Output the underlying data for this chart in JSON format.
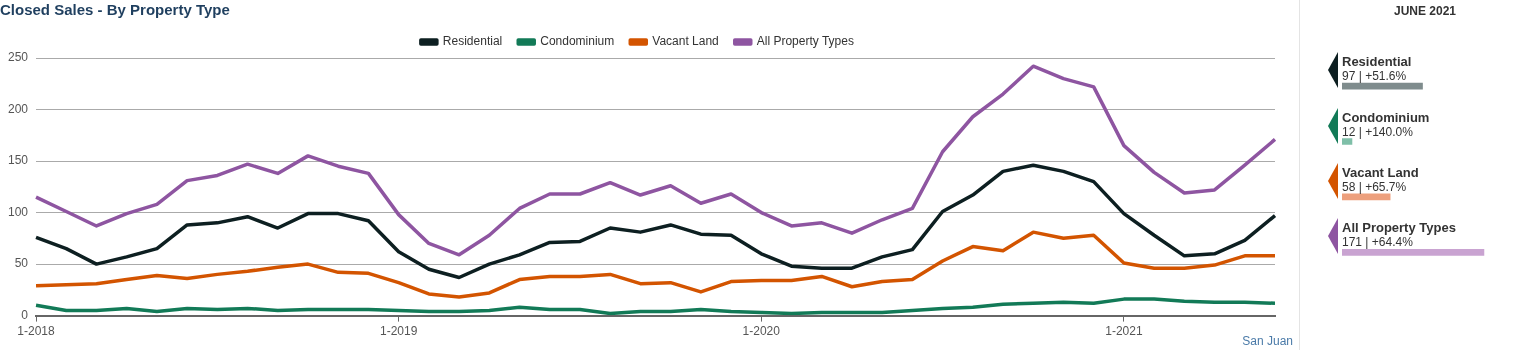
{
  "chart_data": [
    {
      "type": "line",
      "title": "Closed Sales - By Property Type",
      "categories": [
        "1-2018",
        null,
        null,
        null,
        null,
        null,
        null,
        null,
        null,
        null,
        null,
        null,
        "1-2019",
        null,
        null,
        null,
        null,
        null,
        null,
        null,
        null,
        null,
        null,
        null,
        "1-2020",
        null,
        null,
        null,
        null,
        null,
        null,
        null,
        null,
        null,
        null,
        null,
        "1-2021",
        null,
        null,
        null,
        null,
        null
      ],
      "series": [
        {
          "name": "Residential",
          "color": "#0d1f21",
          "values": [
            76,
            65,
            50,
            57,
            65,
            88,
            90,
            96,
            85,
            99,
            99,
            92,
            62,
            45,
            37,
            50,
            59,
            71,
            72,
            85,
            81,
            88,
            79,
            78,
            60,
            48,
            46,
            46,
            57,
            64,
            101,
            117,
            140,
            146,
            140,
            130,
            99,
            78,
            58,
            60,
            73,
            97
          ]
        },
        {
          "name": "Condominium",
          "color": "#127a57",
          "values": [
            10,
            5,
            5,
            7,
            4,
            7,
            6,
            7,
            5,
            6,
            6,
            6,
            5,
            4,
            4,
            5,
            8,
            6,
            6,
            2,
            4,
            4,
            6,
            4,
            3,
            2,
            3,
            3,
            3,
            5,
            7,
            8,
            11,
            12,
            13,
            12,
            16,
            16,
            14,
            13,
            13,
            12
          ]
        },
        {
          "name": "Vacant Land",
          "color": "#d35400",
          "values": [
            29,
            30,
            31,
            35,
            39,
            36,
            40,
            43,
            47,
            50,
            42,
            41,
            32,
            21,
            18,
            22,
            35,
            38,
            38,
            40,
            31,
            32,
            23,
            33,
            34,
            34,
            38,
            28,
            33,
            35,
            53,
            67,
            63,
            81,
            75,
            78,
            51,
            46,
            46,
            49,
            58,
            58
          ]
        },
        {
          "name": "All Property Types",
          "color": "#8e55a1",
          "values": [
            115,
            101,
            87,
            99,
            108,
            131,
            136,
            147,
            138,
            155,
            145,
            138,
            98,
            70,
            59,
            78,
            104,
            118,
            118,
            129,
            117,
            126,
            109,
            118,
            100,
            87,
            90,
            80,
            93,
            104,
            159,
            193,
            215,
            242,
            230,
            222,
            165,
            139,
            119,
            122,
            146,
            171
          ]
        }
      ],
      "ylim": [
        0,
        250
      ],
      "yticks": [
        0,
        50,
        100,
        150,
        200,
        250
      ],
      "grid": "y",
      "legend": "top",
      "marker": "none",
      "line_style": "solid",
      "annotations": [
        "San Juan"
      ]
    },
    {
      "type": "bar",
      "orientation": "horizontal",
      "title": "JUNE 2021",
      "categories": [
        "Residential",
        "Condominium",
        "Vacant Land",
        "All Property Types"
      ],
      "values": [
        97,
        12,
        58,
        171
      ],
      "colors": [
        "#7f8c8d",
        "#7fbfa8",
        "#eda07d",
        "#c9a3d1"
      ],
      "value_labels": [
        "97 | +51.6%",
        "12 | +140.0%",
        "58 | +65.7%",
        "171 | +64.4%"
      ]
    }
  ]
}
